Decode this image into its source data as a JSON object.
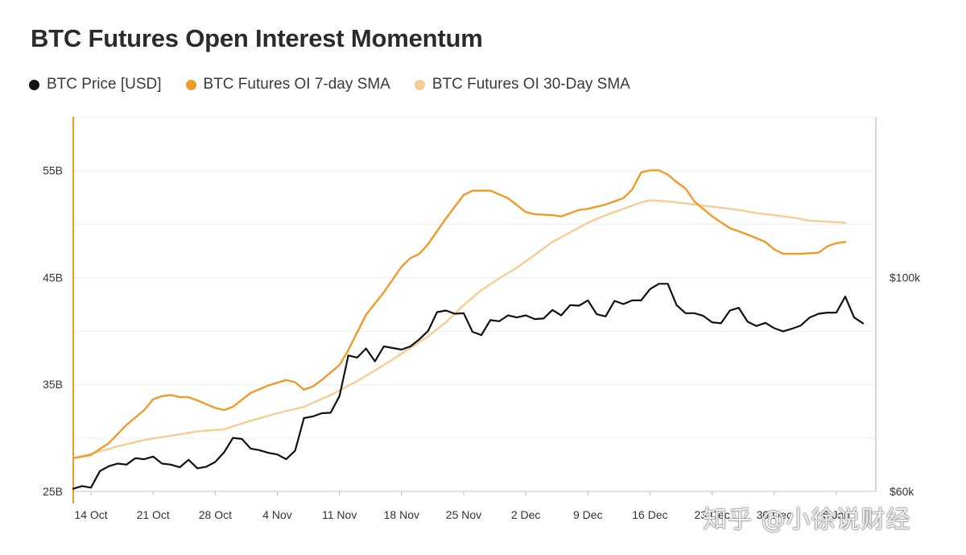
{
  "chart_data": {
    "type": "line",
    "title": "BTC Futures Open Interest Momentum",
    "legend": [
      {
        "name": "BTC Price [USD]",
        "color": "#111111"
      },
      {
        "name": "BTC Futures OI 7-day SMA",
        "color": "#F09A2A"
      },
      {
        "name": "BTC Futures OI 30-Day SMA",
        "color": "#F6CD95"
      }
    ],
    "x_ticks": [
      "14 Oct",
      "21 Oct",
      "28 Oct",
      "4 Nov",
      "11 Nov",
      "18 Nov",
      "25 Nov",
      "2 Dec",
      "9 Dec",
      "16 Dec",
      "23 Dec",
      "30 Dec",
      "6 Jan"
    ],
    "x_start": 0,
    "x_end": 89,
    "x_tick_days": [
      2,
      9,
      16,
      23,
      30,
      37,
      44,
      51,
      58,
      65,
      72,
      79,
      86
    ],
    "y_left": {
      "ticks": [
        "25B",
        "35B",
        "45B",
        "55B"
      ],
      "tick_values": [
        25,
        35,
        45,
        55
      ],
      "ylim": [
        25,
        60
      ]
    },
    "y_right": {
      "ticks": [
        "$60k",
        "$100k"
      ],
      "tick_values": [
        60000,
        100000
      ],
      "ylim": [
        60000,
        130000
      ]
    },
    "series": [
      {
        "name": "BTC Futures OI 7-day SMA",
        "axis": "left",
        "color": "#F09A2A",
        "points": [
          [
            0,
            28.1
          ],
          [
            2,
            28.4
          ],
          [
            4,
            29.5
          ],
          [
            6,
            31.2
          ],
          [
            8,
            32.6
          ],
          [
            9,
            33.6
          ],
          [
            10,
            33.9
          ],
          [
            11,
            34.0
          ],
          [
            12,
            33.8
          ],
          [
            13,
            33.8
          ],
          [
            14,
            33.5
          ],
          [
            16,
            32.8
          ],
          [
            17,
            32.6
          ],
          [
            18,
            32.9
          ],
          [
            20,
            34.2
          ],
          [
            22,
            34.9
          ],
          [
            24,
            35.4
          ],
          [
            25,
            35.2
          ],
          [
            26,
            34.5
          ],
          [
            27,
            34.8
          ],
          [
            28,
            35.4
          ],
          [
            30,
            36.8
          ],
          [
            31,
            38.2
          ],
          [
            33,
            41.5
          ],
          [
            35,
            43.6
          ],
          [
            37,
            46.0
          ],
          [
            38,
            46.8
          ],
          [
            39,
            47.2
          ],
          [
            40,
            48.1
          ],
          [
            42,
            50.5
          ],
          [
            43,
            51.6
          ],
          [
            44,
            52.7
          ],
          [
            45,
            53.1
          ],
          [
            47,
            53.1
          ],
          [
            49,
            52.4
          ],
          [
            51,
            51.1
          ],
          [
            52,
            50.9
          ],
          [
            54,
            50.8
          ],
          [
            55,
            50.7
          ],
          [
            57,
            51.3
          ],
          [
            58,
            51.4
          ],
          [
            60,
            51.8
          ],
          [
            62,
            52.4
          ],
          [
            63,
            53.2
          ],
          [
            64,
            54.8
          ],
          [
            65,
            55.0
          ],
          [
            66,
            55.0
          ],
          [
            67,
            54.6
          ],
          [
            68,
            53.9
          ],
          [
            69,
            53.3
          ],
          [
            70,
            52.1
          ],
          [
            71,
            51.4
          ],
          [
            72,
            50.7
          ],
          [
            74,
            49.6
          ],
          [
            76,
            49.0
          ],
          [
            78,
            48.3
          ],
          [
            79,
            47.6
          ],
          [
            80,
            47.2
          ],
          [
            82,
            47.2
          ],
          [
            84,
            47.3
          ],
          [
            85,
            47.9
          ],
          [
            86,
            48.2
          ],
          [
            87,
            48.3
          ]
        ]
      },
      {
        "name": "BTC Futures OI 30-Day SMA",
        "axis": "left",
        "color": "#F6CD95",
        "points": [
          [
            0,
            28.1
          ],
          [
            2,
            28.5
          ],
          [
            5,
            29.2
          ],
          [
            8,
            29.8
          ],
          [
            11,
            30.2
          ],
          [
            14,
            30.6
          ],
          [
            17,
            30.8
          ],
          [
            20,
            31.6
          ],
          [
            23,
            32.3
          ],
          [
            26,
            32.9
          ],
          [
            29,
            34.0
          ],
          [
            32,
            35.3
          ],
          [
            35,
            36.8
          ],
          [
            38,
            38.4
          ],
          [
            40,
            39.5
          ],
          [
            42,
            40.8
          ],
          [
            44,
            42.4
          ],
          [
            46,
            43.8
          ],
          [
            48,
            44.9
          ],
          [
            50,
            45.9
          ],
          [
            52,
            47.1
          ],
          [
            54,
            48.3
          ],
          [
            56,
            49.2
          ],
          [
            58,
            50.1
          ],
          [
            60,
            50.8
          ],
          [
            62,
            51.4
          ],
          [
            63,
            51.7
          ],
          [
            64,
            52.0
          ],
          [
            65,
            52.2
          ],
          [
            67,
            52.1
          ],
          [
            69,
            51.9
          ],
          [
            71,
            51.7
          ],
          [
            73,
            51.5
          ],
          [
            75,
            51.3
          ],
          [
            77,
            51.0
          ],
          [
            79,
            50.8
          ],
          [
            81,
            50.6
          ],
          [
            83,
            50.3
          ],
          [
            85,
            50.2
          ],
          [
            87,
            50.1
          ]
        ]
      },
      {
        "name": "BTC Price [USD]",
        "axis": "right",
        "color": "#111111",
        "points": [
          [
            0,
            60500
          ],
          [
            1,
            61000
          ],
          [
            2,
            60700
          ],
          [
            3,
            63800
          ],
          [
            4,
            64700
          ],
          [
            5,
            65200
          ],
          [
            6,
            65000
          ],
          [
            7,
            66200
          ],
          [
            8,
            66000
          ],
          [
            9,
            66500
          ],
          [
            10,
            65200
          ],
          [
            11,
            65000
          ],
          [
            12,
            64500
          ],
          [
            13,
            65900
          ],
          [
            14,
            64300
          ],
          [
            15,
            64600
          ],
          [
            16,
            65500
          ],
          [
            17,
            67300
          ],
          [
            18,
            70000
          ],
          [
            19,
            69800
          ],
          [
            20,
            68000
          ],
          [
            21,
            67700
          ],
          [
            22,
            67200
          ],
          [
            23,
            66900
          ],
          [
            24,
            66000
          ],
          [
            25,
            67600
          ],
          [
            26,
            73700
          ],
          [
            27,
            74000
          ],
          [
            28,
            74600
          ],
          [
            29,
            74700
          ],
          [
            30,
            77800
          ],
          [
            31,
            85400
          ],
          [
            32,
            85000
          ],
          [
            33,
            86700
          ],
          [
            34,
            84300
          ],
          [
            35,
            87100
          ],
          [
            36,
            86800
          ],
          [
            37,
            86500
          ],
          [
            38,
            87100
          ],
          [
            39,
            88400
          ],
          [
            40,
            90000
          ],
          [
            41,
            93500
          ],
          [
            42,
            93800
          ],
          [
            43,
            93200
          ],
          [
            44,
            93300
          ],
          [
            45,
            89800
          ],
          [
            46,
            89200
          ],
          [
            47,
            92000
          ],
          [
            48,
            91800
          ],
          [
            49,
            92900
          ],
          [
            50,
            92500
          ],
          [
            51,
            92900
          ],
          [
            52,
            92200
          ],
          [
            53,
            92300
          ],
          [
            54,
            93900
          ],
          [
            55,
            92900
          ],
          [
            56,
            94800
          ],
          [
            57,
            94700
          ],
          [
            58,
            95700
          ],
          [
            59,
            93100
          ],
          [
            60,
            92700
          ],
          [
            61,
            95600
          ],
          [
            62,
            95000
          ],
          [
            63,
            95700
          ],
          [
            64,
            95700
          ],
          [
            65,
            97800
          ],
          [
            66,
            98800
          ],
          [
            67,
            98800
          ],
          [
            68,
            94800
          ],
          [
            69,
            93300
          ],
          [
            70,
            93300
          ],
          [
            71,
            92800
          ],
          [
            72,
            91600
          ],
          [
            73,
            91400
          ],
          [
            74,
            93800
          ],
          [
            75,
            94300
          ],
          [
            76,
            91700
          ],
          [
            77,
            90900
          ],
          [
            78,
            91500
          ],
          [
            79,
            90500
          ],
          [
            80,
            89900
          ],
          [
            81,
            90400
          ],
          [
            82,
            91000
          ],
          [
            83,
            92500
          ],
          [
            84,
            93200
          ],
          [
            85,
            93400
          ],
          [
            86,
            93400
          ],
          [
            87,
            96400
          ],
          [
            88,
            92500
          ],
          [
            89,
            91400
          ]
        ]
      }
    ]
  },
  "watermark": "知乎 @小徐说财经"
}
